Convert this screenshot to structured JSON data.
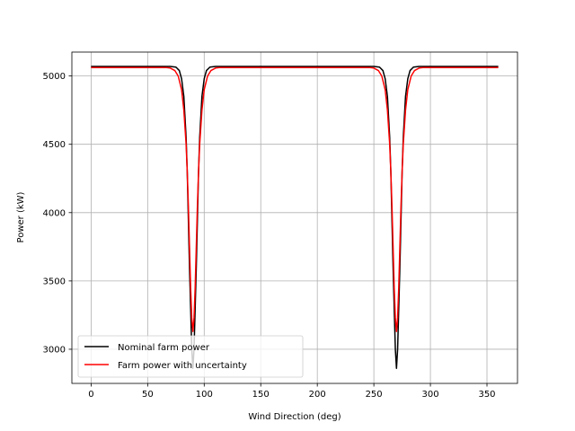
{
  "chart_data": {
    "type": "line",
    "title": "",
    "xlabel": "Wind Direction (deg)",
    "ylabel": "Power (kW)",
    "xlim": [
      -17,
      377
    ],
    "ylim": [
      2750,
      5175
    ],
    "xticks": [
      0,
      50,
      100,
      150,
      200,
      250,
      300,
      350
    ],
    "yticks": [
      3000,
      3500,
      4000,
      4500,
      5000
    ],
    "grid": true,
    "legend": "lower-left",
    "series": [
      {
        "name": "Nominal farm power",
        "color": "#000000",
        "x": [
          0,
          70,
          75,
          78,
          80,
          82,
          84,
          85,
          86,
          87,
          88,
          89,
          90,
          91,
          92,
          93,
          94,
          95,
          96,
          98,
          100,
          102,
          105,
          110,
          250,
          255,
          258,
          260,
          262,
          264,
          265,
          266,
          267,
          268,
          269,
          270,
          271,
          272,
          273,
          274,
          275,
          276,
          278,
          280,
          282,
          285,
          290,
          360
        ],
        "y": [
          5070,
          5070,
          5065,
          5040,
          4980,
          4850,
          4550,
          4300,
          3950,
          3600,
          3300,
          3000,
          2860,
          3000,
          3300,
          3600,
          3950,
          4300,
          4550,
          4850,
          4980,
          5040,
          5065,
          5070,
          5070,
          5065,
          5040,
          4980,
          4850,
          4550,
          4300,
          3950,
          3600,
          3300,
          3000,
          2860,
          3000,
          3300,
          3600,
          3950,
          4300,
          4550,
          4850,
          4980,
          5040,
          5065,
          5070,
          5070
        ]
      },
      {
        "name": "Farm power with uncertainty",
        "color": "#ff0000",
        "x": [
          0,
          66,
          70,
          74,
          77,
          80,
          82,
          84,
          85,
          86,
          87,
          88,
          89,
          90,
          91,
          92,
          93,
          94,
          95,
          96,
          98,
          100,
          103,
          106,
          110,
          114,
          246,
          250,
          254,
          257,
          260,
          262,
          264,
          265,
          266,
          267,
          268,
          269,
          270,
          271,
          272,
          273,
          274,
          275,
          276,
          278,
          280,
          283,
          286,
          290,
          294,
          360
        ],
        "y": [
          5062,
          5062,
          5058,
          5040,
          5000,
          4900,
          4750,
          4500,
          4300,
          4050,
          3750,
          3450,
          3230,
          3130,
          3230,
          3450,
          3750,
          4050,
          4300,
          4500,
          4750,
          4900,
          5000,
          5040,
          5058,
          5062,
          5062,
          5058,
          5040,
          5000,
          4900,
          4750,
          4500,
          4300,
          4050,
          3750,
          3450,
          3230,
          3130,
          3230,
          3450,
          3750,
          4050,
          4300,
          4500,
          4750,
          4900,
          5000,
          5040,
          5058,
          5062,
          5062
        ]
      }
    ]
  }
}
